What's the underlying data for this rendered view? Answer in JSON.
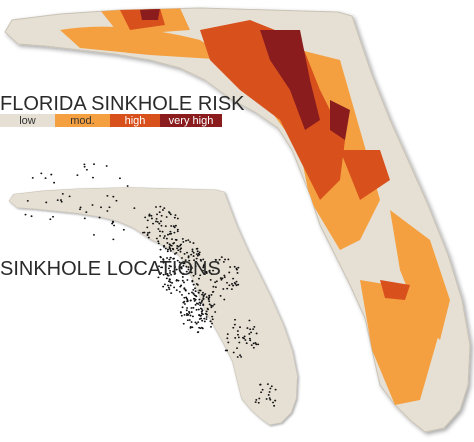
{
  "title": "FLORIDA SINKHOLE RISK",
  "legend": [
    {
      "label": "low",
      "color": "#e6e0d4"
    },
    {
      "label": "mod.",
      "color": "#f4a040"
    },
    {
      "label": "high",
      "color": "#d8501c"
    },
    {
      "label": "very high",
      "color": "#8a1c1e"
    }
  ],
  "locations_title": "SINKHOLE LOCATIONS"
}
